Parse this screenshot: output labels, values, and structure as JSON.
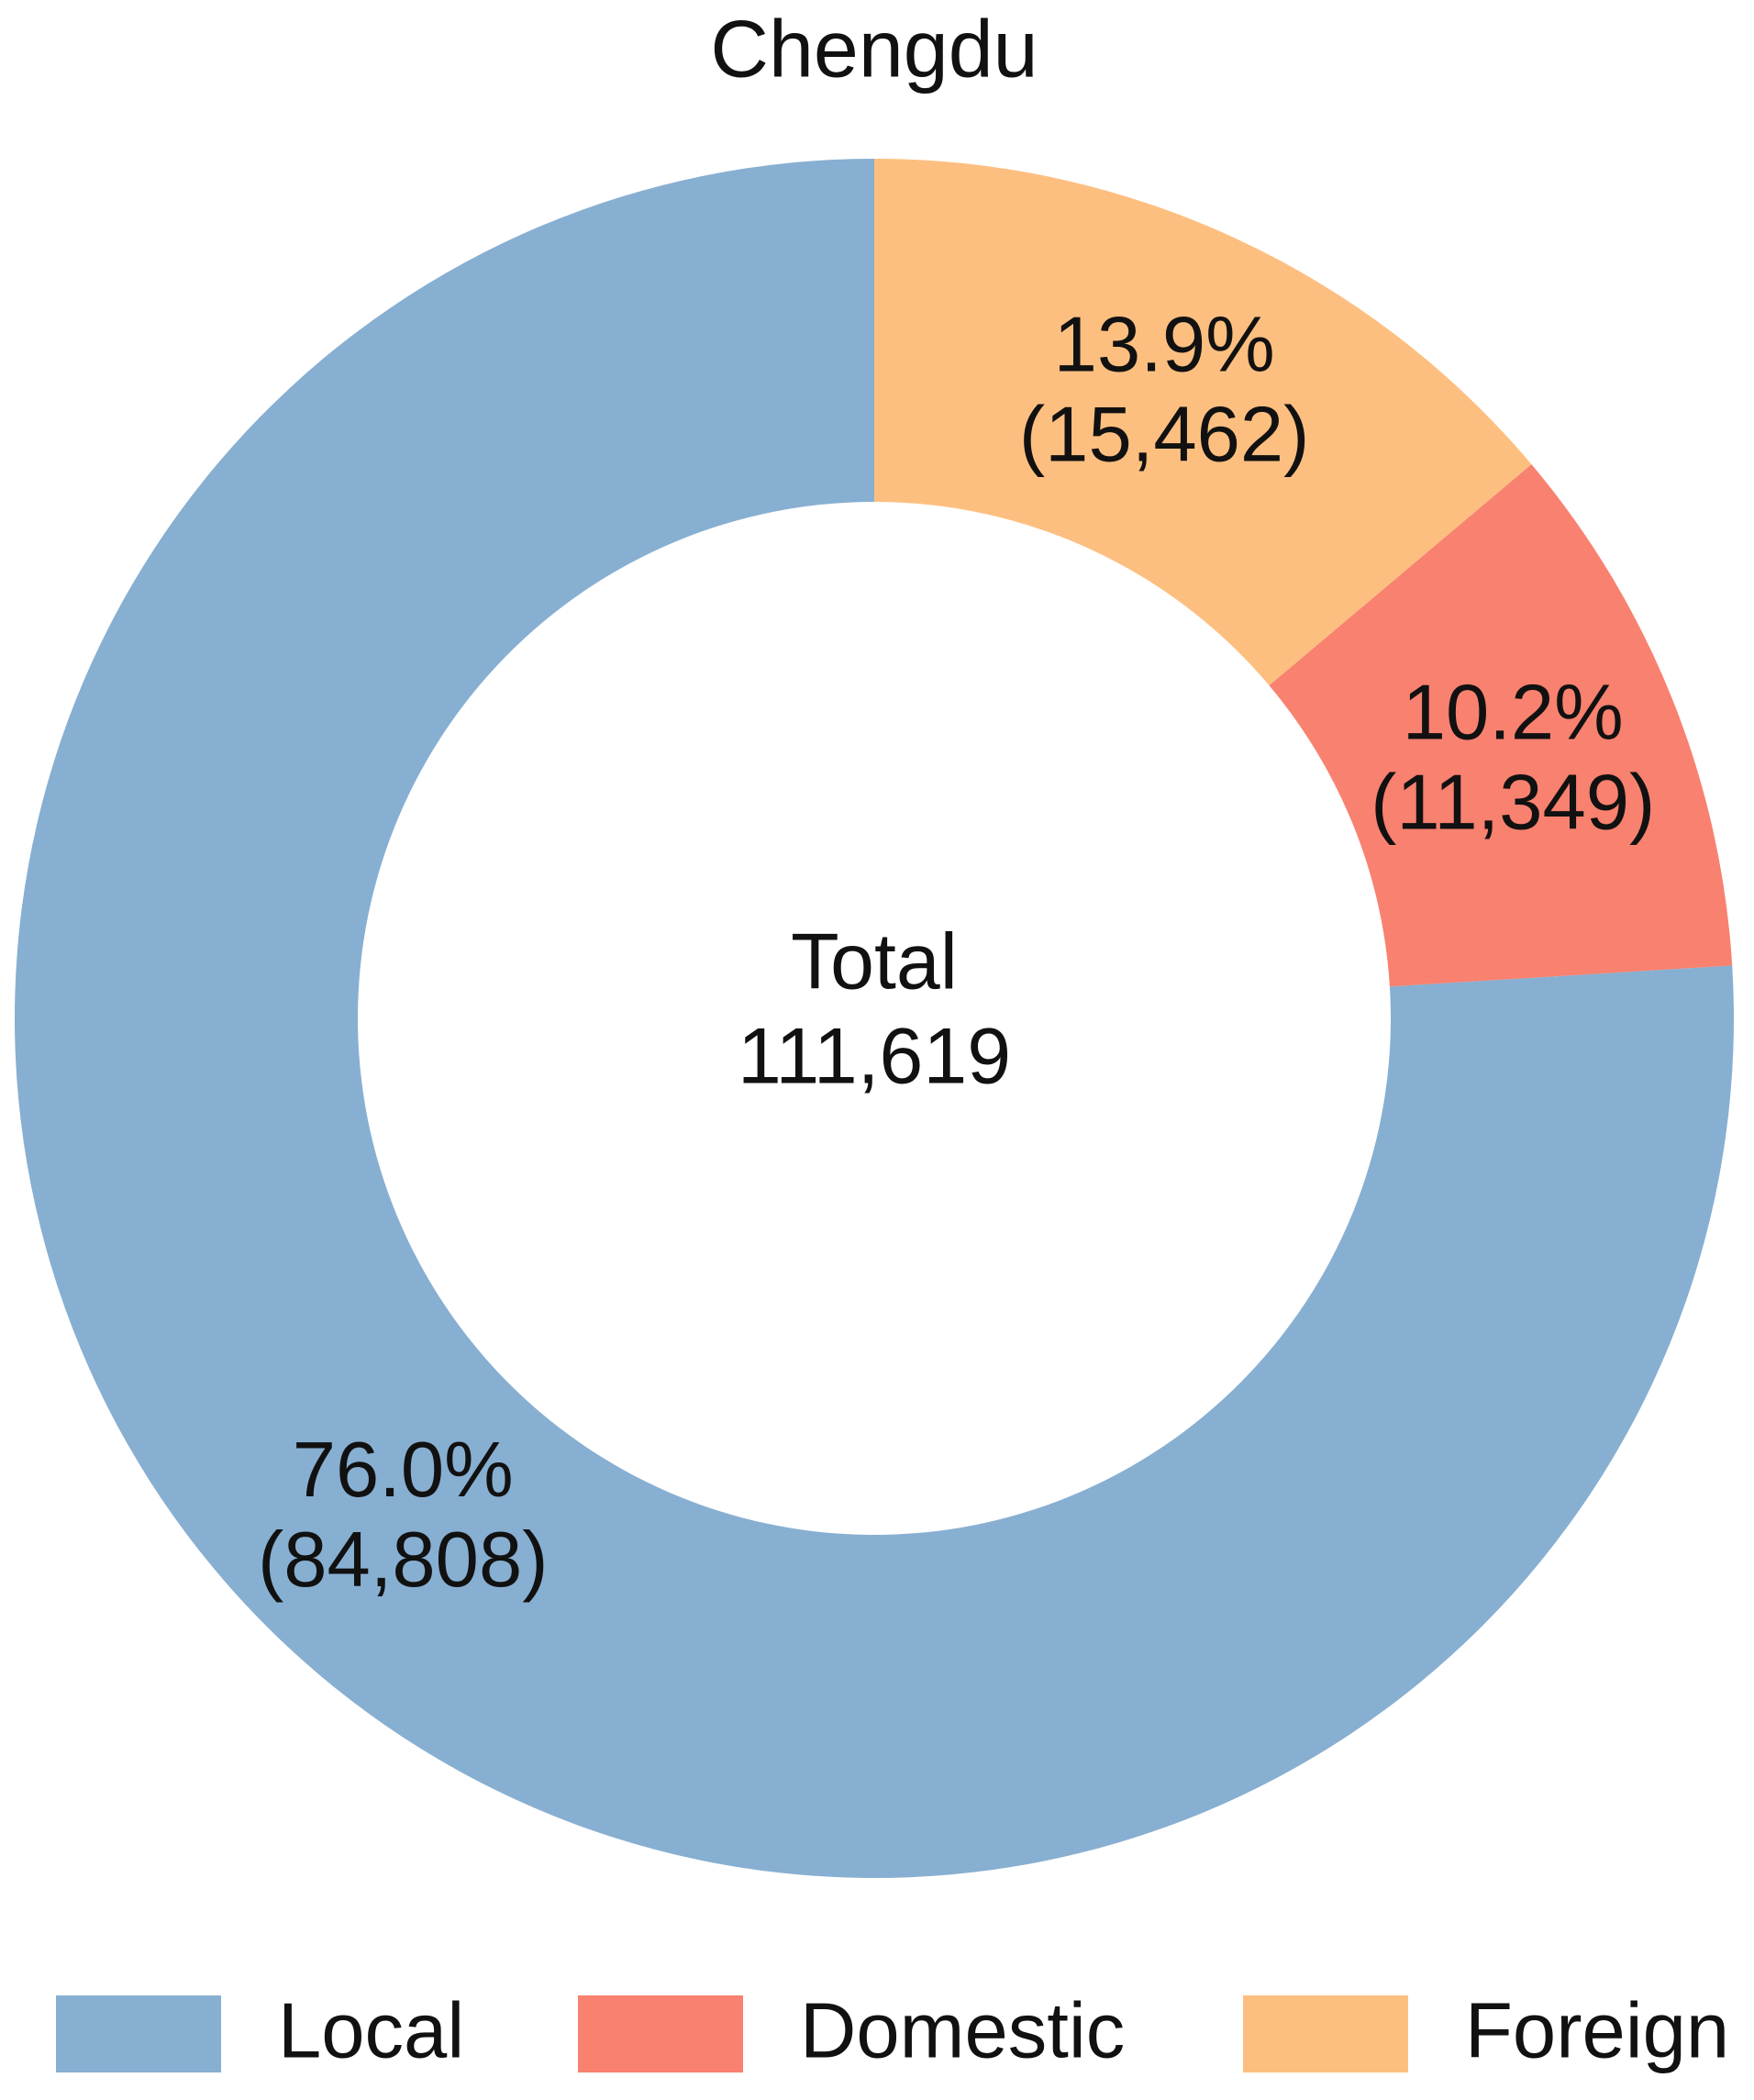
{
  "chart_data": {
    "type": "donut",
    "title": "Chengdu",
    "categories": [
      "Local",
      "Domestic",
      "Foreign"
    ],
    "values": [
      84808,
      11349,
      15462
    ],
    "value_labels": [
      "(84,808)",
      "(11,349)",
      "(15,462)"
    ],
    "percent_labels": [
      "76.0%",
      "10.2%",
      "13.9%"
    ],
    "colors": [
      "#87afd1",
      "#f8816f",
      "#fdbf80"
    ],
    "center_label": "Total",
    "center_value": "111,619",
    "start_angle": 90,
    "counterclockwise": true,
    "legend": "bottom"
  }
}
